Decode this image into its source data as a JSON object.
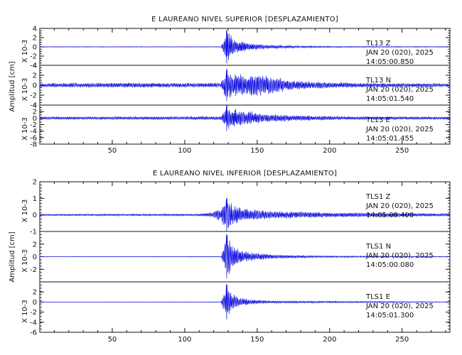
{
  "colors": {
    "trace": "#1010e0",
    "axis": "#111111",
    "background": "#ffffff"
  },
  "chart_data": [
    {
      "type": "line",
      "title": "E LAUREANO NIVEL SUPERIOR [DESPLAZAMIENTO]",
      "ylabel": "Amplitud [cm]",
      "xlim": [
        0,
        283
      ],
      "xticks": [
        50,
        100,
        150,
        200,
        250
      ],
      "onset": 129,
      "series": [
        {
          "station": "TL13",
          "component": "Z",
          "date": "JAN 20 (020), 2025",
          "time": "14:05:00.850",
          "ylim": [
            -4,
            4
          ],
          "yticks": [
            -4,
            -2,
            0,
            2,
            4
          ],
          "scale": "X 10-3",
          "peak": 3.6,
          "noise": 0.07,
          "envelope": [
            [
              0,
              0.07
            ],
            [
              125,
              0.07
            ],
            [
              129,
              3.6
            ],
            [
              132,
              2.5
            ],
            [
              136,
              1.5
            ],
            [
              145,
              0.8
            ],
            [
              155,
              0.5
            ],
            [
              175,
              0.25
            ],
            [
              210,
              0.12
            ],
            [
              283,
              0.08
            ]
          ]
        },
        {
          "station": "TL13",
          "component": "N",
          "date": "JAN 20 (020), 2025",
          "time": "14:05:01.540",
          "ylim": [
            -4,
            4
          ],
          "yticks": [
            -4,
            -2,
            0,
            2,
            4
          ],
          "scale": "X 10-3",
          "peak": 3.2,
          "noise": 0.35,
          "envelope": [
            [
              0,
              0.4
            ],
            [
              60,
              0.5
            ],
            [
              110,
              0.45
            ],
            [
              125,
              0.5
            ],
            [
              129,
              3.2
            ],
            [
              133,
              2.6
            ],
            [
              138,
              2.4
            ],
            [
              143,
              2.0
            ],
            [
              150,
              2.6
            ],
            [
              160,
              1.8
            ],
            [
              175,
              1.0
            ],
            [
              200,
              0.6
            ],
            [
              240,
              0.4
            ],
            [
              283,
              0.35
            ]
          ]
        },
        {
          "station": "TL13",
          "component": "E",
          "date": "JAN 20 (020), 2025",
          "time": "14:05:01.455",
          "ylim": [
            -8,
            4
          ],
          "yticks": [
            -8,
            -6,
            -4,
            -2,
            0,
            2,
            4
          ],
          "scale": "X 10-3",
          "peak": 4.0,
          "noise": 0.4,
          "envelope": [
            [
              0,
              0.4
            ],
            [
              100,
              0.5
            ],
            [
              125,
              0.6
            ],
            [
              129,
              4.0
            ],
            [
              133,
              3.0
            ],
            [
              137,
              2.8
            ],
            [
              145,
              2.2
            ],
            [
              155,
              1.4
            ],
            [
              175,
              0.9
            ],
            [
              210,
              0.5
            ],
            [
              283,
              0.4
            ]
          ]
        }
      ]
    },
    {
      "type": "line",
      "title": "E LAUREANO NIVEL INFERIOR [DESPLAZAMIENTO]",
      "ylabel": "Amplitud [cm]",
      "xlim": [
        0,
        283
      ],
      "xticks": [
        50,
        100,
        150,
        200,
        250
      ],
      "onset": 129,
      "series": [
        {
          "station": "TLS1",
          "component": "Z",
          "date": "JAN 20 (020), 2025",
          "time": "14:05:00.400",
          "ylim": [
            -1,
            2
          ],
          "yticks": [
            -1,
            0,
            1,
            2
          ],
          "scale": "X 10-3",
          "peak": 1.0,
          "noise": 0.05,
          "envelope": [
            [
              0,
              0.05
            ],
            [
              110,
              0.06
            ],
            [
              118,
              0.15
            ],
            [
              125,
              0.4
            ],
            [
              129,
              1.0
            ],
            [
              133,
              0.7
            ],
            [
              140,
              0.4
            ],
            [
              160,
              0.25
            ],
            [
              200,
              0.15
            ],
            [
              283,
              0.08
            ]
          ]
        },
        {
          "station": "TLS1",
          "component": "N",
          "date": "JAN 20 (020), 2025",
          "time": "14:05:00.080",
          "ylim": [
            -4,
            4
          ],
          "yticks": [
            -2,
            0,
            2
          ],
          "scale": "X 10-3",
          "peak": 3.5,
          "noise": 0.03,
          "envelope": [
            [
              0,
              0.03
            ],
            [
              125,
              0.05
            ],
            [
              129,
              3.5
            ],
            [
              132,
              2.2
            ],
            [
              137,
              1.2
            ],
            [
              145,
              0.7
            ],
            [
              160,
              0.35
            ],
            [
              190,
              0.15
            ],
            [
              283,
              0.05
            ]
          ]
        },
        {
          "station": "TLS1",
          "component": "E",
          "date": "JAN 20 (020), 2025",
          "time": "14:05:01.300",
          "ylim": [
            -6,
            4
          ],
          "yticks": [
            -6,
            -4,
            -2,
            0,
            2
          ],
          "scale": "X 10-3",
          "peak": 3.5,
          "noise": 0.03,
          "envelope": [
            [
              0,
              0.03
            ],
            [
              125,
              0.05
            ],
            [
              129,
              3.5
            ],
            [
              132,
              2.0
            ],
            [
              137,
              1.0
            ],
            [
              145,
              0.5
            ],
            [
              160,
              0.25
            ],
            [
              283,
              0.05
            ]
          ]
        }
      ]
    }
  ]
}
